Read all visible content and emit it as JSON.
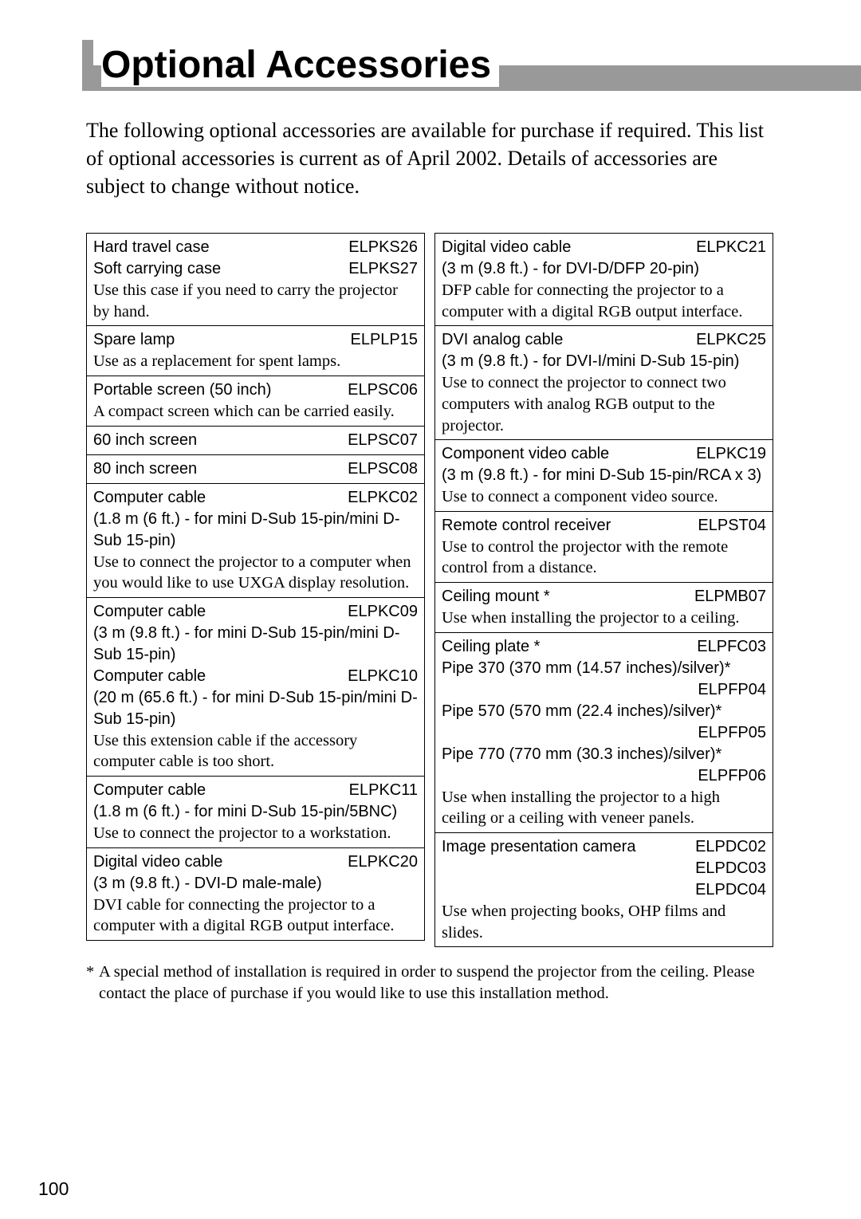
{
  "title": "Optional Accessories",
  "intro": "The following optional accessories are available for purchase if required. This list of optional accessories is current as of April 2002. Details of accessories are subject to change without notice.",
  "footnote_star": "*",
  "footnote": "A special method of installation is required in order to suspend the projector from the ceiling. Please contact the place of purchase if you would like to use this installation method.",
  "page_num": "100",
  "left": [
    {
      "entries": [
        {
          "name": "Hard travel case",
          "code": "ELPKS26"
        },
        {
          "name": "Soft carrying case",
          "code": "ELPKS27"
        }
      ],
      "desc": "Use this case if you need to carry the projector by hand."
    },
    {
      "entries": [
        {
          "name": "Spare lamp",
          "code": "ELPLP15"
        }
      ],
      "desc": "Use as a replacement for spent lamps."
    },
    {
      "entries": [
        {
          "name": "Portable screen (50 inch)",
          "code": "ELPSC06"
        }
      ],
      "desc": "A compact screen which can be carried easily."
    },
    {
      "entries": [
        {
          "name": "60 inch screen",
          "code": "ELPSC07"
        }
      ]
    },
    {
      "entries": [
        {
          "name": "80 inch screen",
          "code": "ELPSC08"
        }
      ]
    },
    {
      "entries": [
        {
          "name": "Computer cable",
          "code": "ELPKC02"
        }
      ],
      "spec": "(1.8 m (6 ft.) - for mini D-Sub 15-pin/mini D-Sub 15-pin)",
      "desc": "Use to connect the projector to a computer when you would like to use UXGA display resolution."
    },
    {
      "entries": [
        {
          "name": "Computer cable",
          "code": "ELPKC09"
        }
      ],
      "spec": "(3 m (9.8 ft.) - for mini D-Sub 15-pin/mini D-Sub 15-pin)",
      "entries2": [
        {
          "name": "Computer cable",
          "code": "ELPKC10"
        }
      ],
      "spec2": "(20 m (65.6 ft.) - for mini D-Sub 15-pin/mini D-Sub 15-pin)",
      "desc": "Use this extension cable if the accessory computer cable is too short."
    },
    {
      "entries": [
        {
          "name": "Computer cable",
          "code": "ELPKC11"
        }
      ],
      "spec": "(1.8 m (6 ft.) - for mini D-Sub 15-pin/5BNC)",
      "desc": "Use to connect the projector to a workstation."
    },
    {
      "entries": [
        {
          "name": "Digital video cable",
          "code": "ELPKC20"
        }
      ],
      "spec": "(3 m (9.8 ft.) - DVI-D male-male)",
      "desc": "DVI cable for connecting the projector to a computer with a digital RGB output interface."
    }
  ],
  "right": [
    {
      "entries": [
        {
          "name": "Digital video cable",
          "code": "ELPKC21"
        }
      ],
      "spec": "(3 m (9.8 ft.) - for DVI-D/DFP 20-pin)",
      "desc": "DFP cable for connecting the projector to a computer with a digital RGB output interface."
    },
    {
      "entries": [
        {
          "name": "DVI analog cable",
          "code": "ELPKC25"
        }
      ],
      "spec": "(3 m (9.8 ft.) - for DVI-I/mini D-Sub 15-pin)",
      "desc": "Use to connect the projector to connect two computers with analog RGB output to the projector."
    },
    {
      "entries": [
        {
          "name": "Component video cable",
          "code": "ELPKC19"
        }
      ],
      "spec": "(3 m (9.8 ft.) - for mini D-Sub 15-pin/RCA x 3)",
      "desc": "Use to connect a component video source."
    },
    {
      "entries": [
        {
          "name": "Remote control receiver",
          "code": "ELPST04"
        }
      ],
      "desc": "Use to control the projector with the remote control from a distance."
    },
    {
      "entries": [
        {
          "name": "Ceiling mount *",
          "code": "ELPMB07"
        }
      ],
      "desc": "Use when installing the projector to a ceiling."
    },
    {
      "entries": [
        {
          "name": "Ceiling plate *",
          "code": "ELPFC03"
        }
      ],
      "pipes": [
        {
          "name": "Pipe 370 (370 mm (14.57 inches)/silver)*",
          "code": "ELPFP04"
        },
        {
          "name": "Pipe 570 (570 mm (22.4 inches)/silver)*",
          "code": "ELPFP05"
        },
        {
          "name": "Pipe 770 (770 mm (30.3 inches)/silver)*",
          "code": "ELPFP06"
        }
      ],
      "desc": "Use when installing the projector to a high ceiling or a ceiling with veneer panels."
    },
    {
      "entries": [
        {
          "name": "Image presentation camera",
          "code": "ELPDC02"
        },
        {
          "name": "",
          "code": "ELPDC03"
        },
        {
          "name": "",
          "code": "ELPDC04"
        }
      ],
      "desc": "Use when projecting books, OHP films and slides."
    }
  ]
}
